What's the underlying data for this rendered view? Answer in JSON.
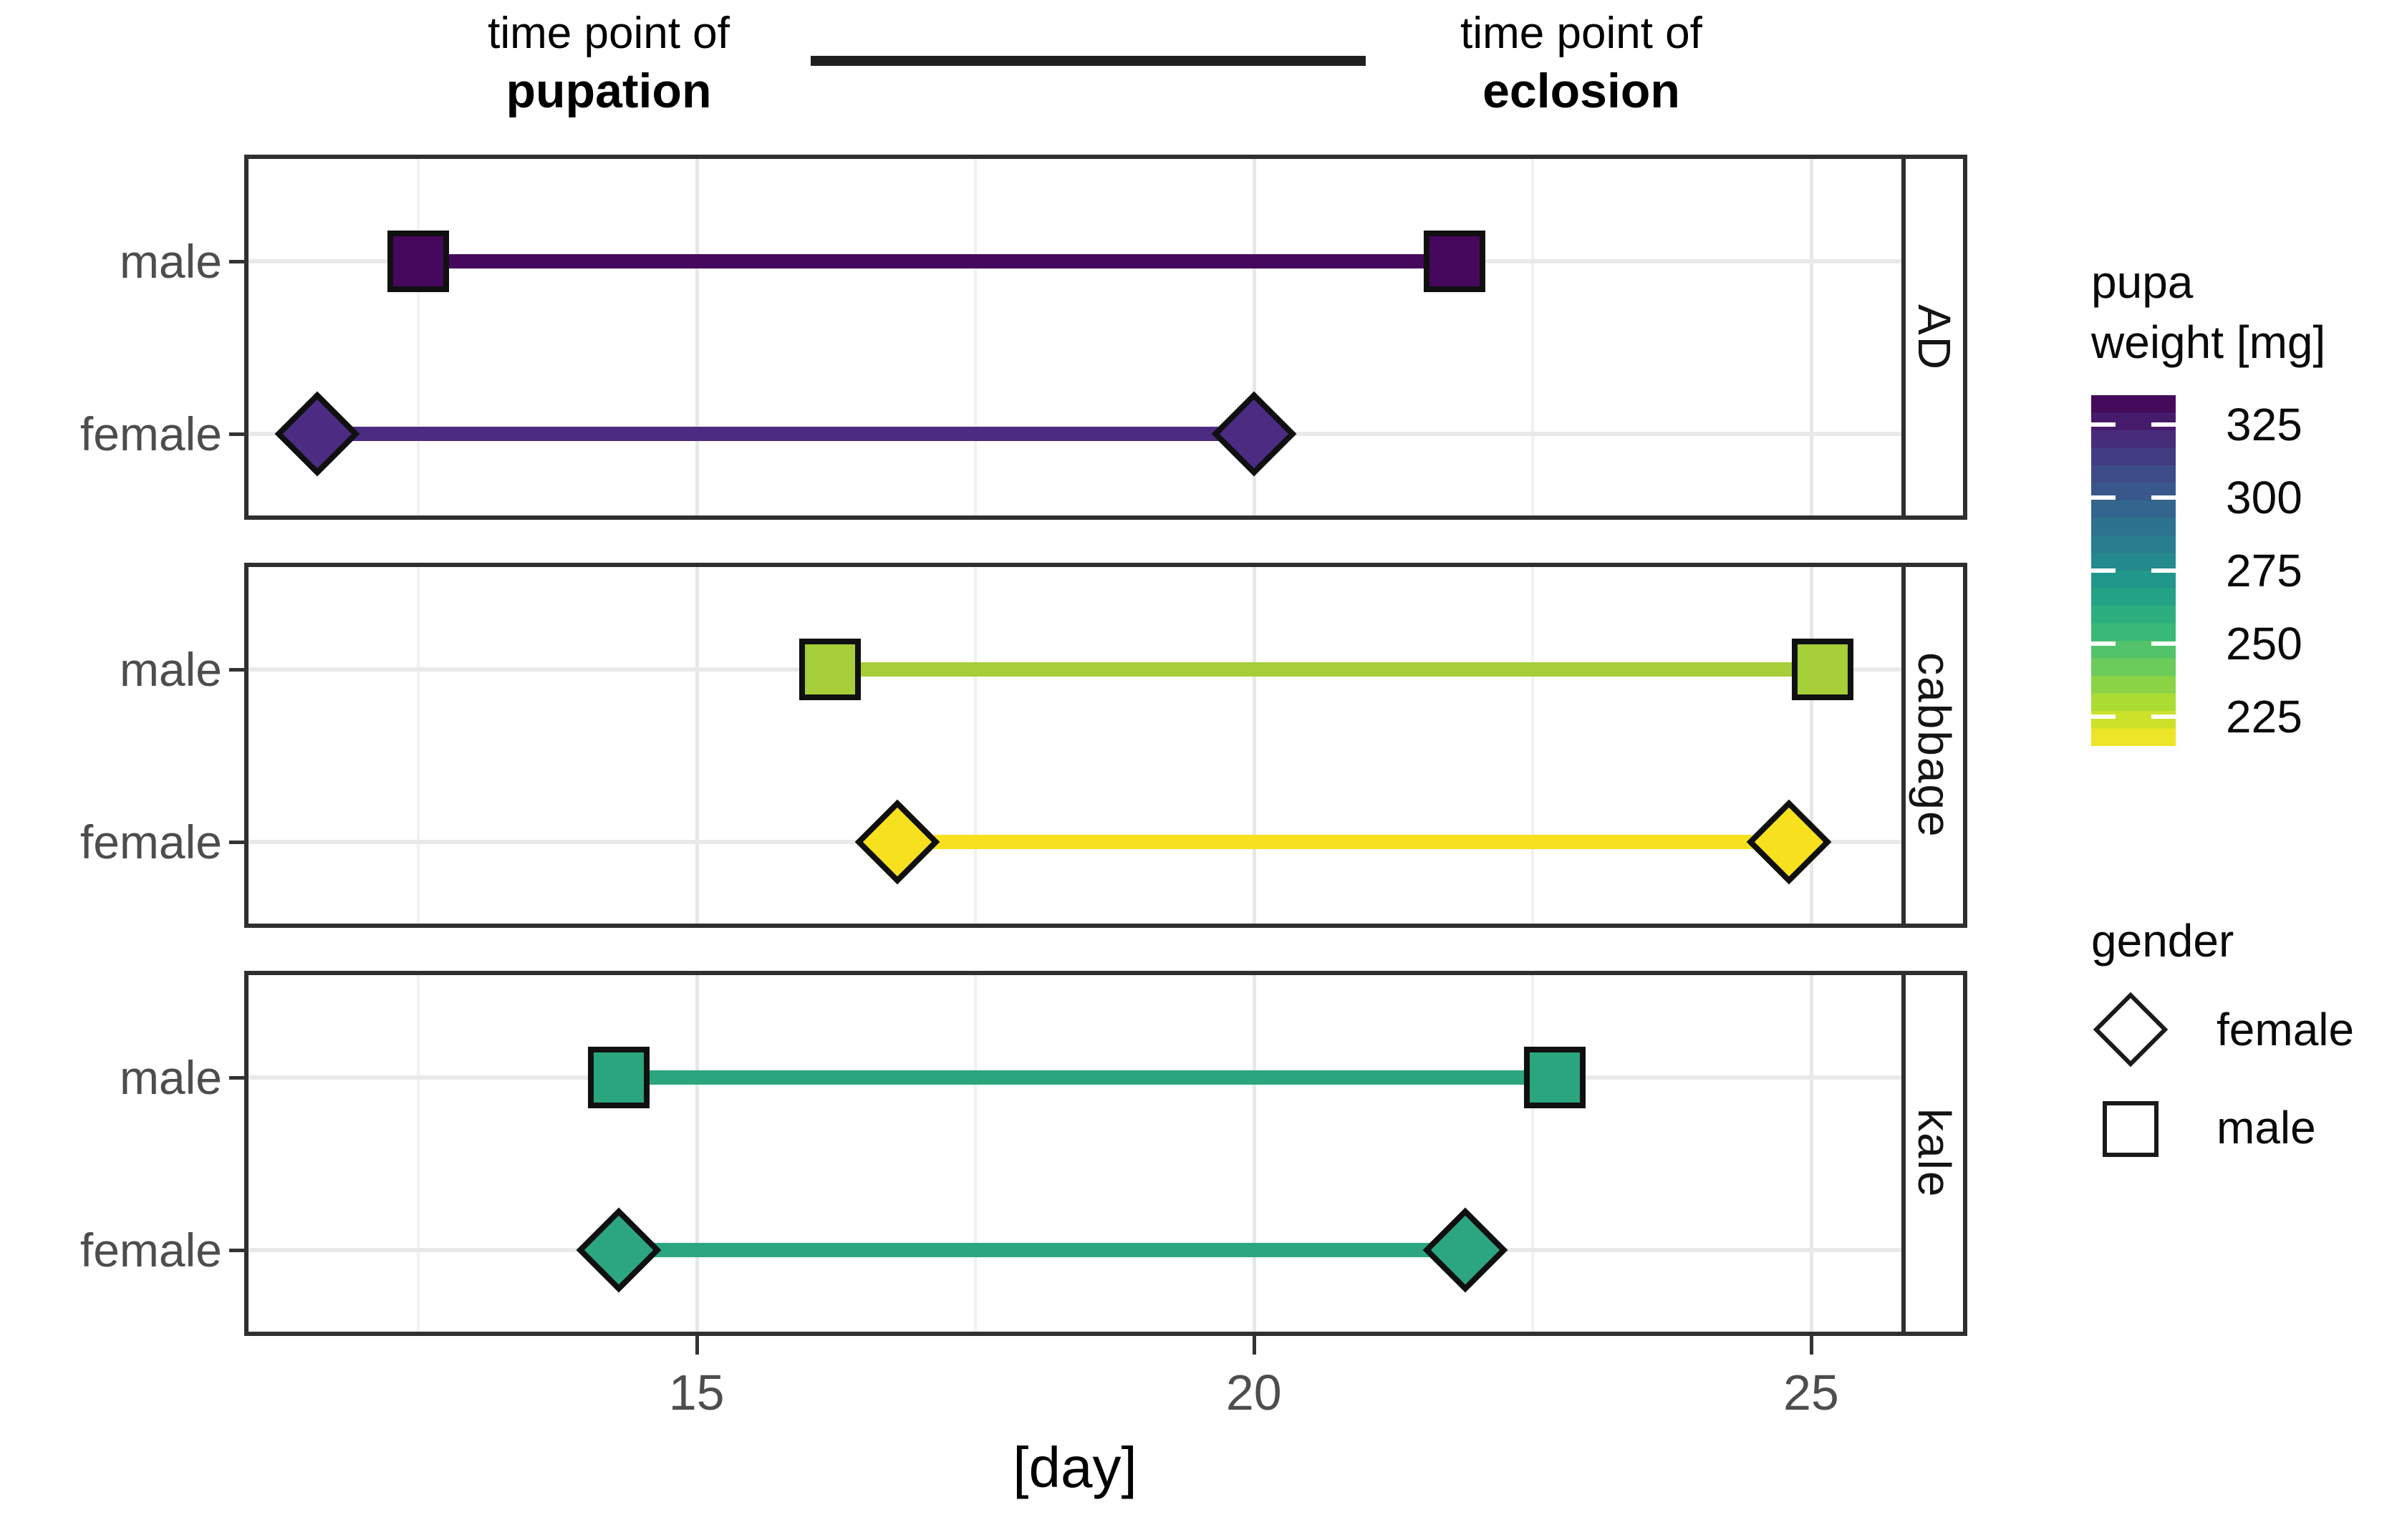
{
  "figure": {
    "background": "#FFFFFF"
  },
  "header": {
    "left": {
      "line1": "time point of",
      "line2": "pupation"
    },
    "right": {
      "line1": "time point of",
      "line2": "eclosion"
    }
  },
  "legend": {
    "colorbar": {
      "title_line1": "pupa",
      "title_line2": "weight [mg]",
      "tick_labels": [
        "325",
        "300",
        "275",
        "250",
        "225"
      ],
      "tick_values": [
        325,
        300,
        275,
        250,
        225
      ],
      "value_range_top_to_bottom": [
        335,
        215
      ],
      "viridis_anchors_top_to_bottom": [
        "#440154",
        "#482878",
        "#3E4A89",
        "#31688E",
        "#26828E",
        "#1F9E89",
        "#35B779",
        "#6DCD59",
        "#B4DE2C",
        "#FDE725"
      ]
    },
    "gender": {
      "title": "gender",
      "items": [
        {
          "shape": "diamond",
          "label": "female"
        },
        {
          "shape": "square",
          "label": "male"
        }
      ]
    }
  },
  "chart_data": {
    "type": "dumbbell",
    "description": "Time span from pupation to eclosion per diet facet and gender; segment/marker color encodes pupa weight (viridis).",
    "xlabel": "[day]",
    "x_ticks": [
      15,
      20,
      25
    ],
    "x_minor_ticks": [
      12.5,
      17.5,
      22.5
    ],
    "x_range": [
      10.98,
      25.81
    ],
    "y_categories": [
      "male",
      "female"
    ],
    "marker_shapes": {
      "male": "square",
      "female": "diamond"
    },
    "grid": {
      "major_color": "#E7E7E7",
      "minor_color": "#F1F1F1",
      "row_color": "#E9E9E9",
      "panel_border": "#2F2F2F"
    },
    "facets": [
      {
        "diet": "AD",
        "rows": [
          {
            "gender": "male",
            "pupation_day": 12.5,
            "eclosion_day": 21.8,
            "color": "#46085C",
            "pupa_weight_mg_est": 333
          },
          {
            "gender": "female",
            "pupation_day": 11.6,
            "eclosion_day": 20.0,
            "color": "#4B2C82",
            "pupa_weight_mg_est": 323
          }
        ]
      },
      {
        "diet": "cabbage",
        "rows": [
          {
            "gender": "male",
            "pupation_day": 16.2,
            "eclosion_day": 25.1,
            "color": "#A5CE38",
            "pupa_weight_mg_est": 230
          },
          {
            "gender": "female",
            "pupation_day": 16.8,
            "eclosion_day": 24.8,
            "color": "#F7E11E",
            "pupa_weight_mg_est": 218
          }
        ]
      },
      {
        "diet": "kale",
        "rows": [
          {
            "gender": "male",
            "pupation_day": 14.3,
            "eclosion_day": 22.7,
            "color": "#2BA57E",
            "pupa_weight_mg_est": 257
          },
          {
            "gender": "female",
            "pupation_day": 14.3,
            "eclosion_day": 21.9,
            "color": "#2CA681",
            "pupa_weight_mg_est": 255
          }
        ]
      }
    ]
  }
}
